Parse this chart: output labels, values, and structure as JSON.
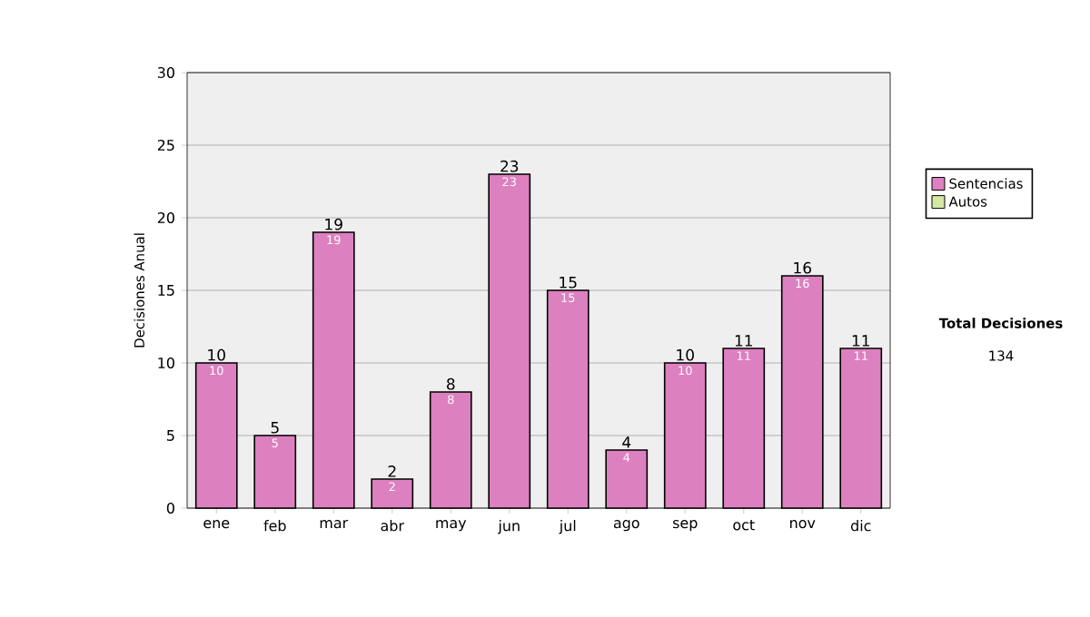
{
  "chart_data": {
    "type": "bar",
    "stacked": true,
    "ylabel": "Decisiones Anual",
    "categories": [
      "ene",
      "feb",
      "mar",
      "abr",
      "may",
      "jun",
      "jul",
      "ago",
      "sep",
      "oct",
      "nov",
      "dic"
    ],
    "series": [
      {
        "name": "Sentencias",
        "color": "#dd80c0",
        "values": [
          10,
          5,
          19,
          2,
          8,
          23,
          15,
          4,
          10,
          11,
          16,
          11
        ],
        "value_labels": [
          "10",
          "5",
          "19",
          "2",
          "8",
          "23",
          "15",
          "4",
          "10",
          "11",
          "16",
          "11"
        ]
      },
      {
        "name": "Autos",
        "color": "#d4e8a4",
        "values": [
          0,
          0,
          0,
          0,
          0,
          0,
          0,
          0,
          0,
          0,
          0,
          0
        ]
      }
    ],
    "totals": [
      "10",
      "5",
      "19",
      "2",
      "8",
      "23",
      "15",
      "4",
      "10",
      "11",
      "16",
      "11"
    ],
    "ylim": [
      0,
      30
    ],
    "yticks": [
      0,
      5,
      10,
      15,
      20,
      25,
      30
    ],
    "grid": "y",
    "legend": "right",
    "annotations": [
      "Total Decisiones",
      "134"
    ]
  }
}
